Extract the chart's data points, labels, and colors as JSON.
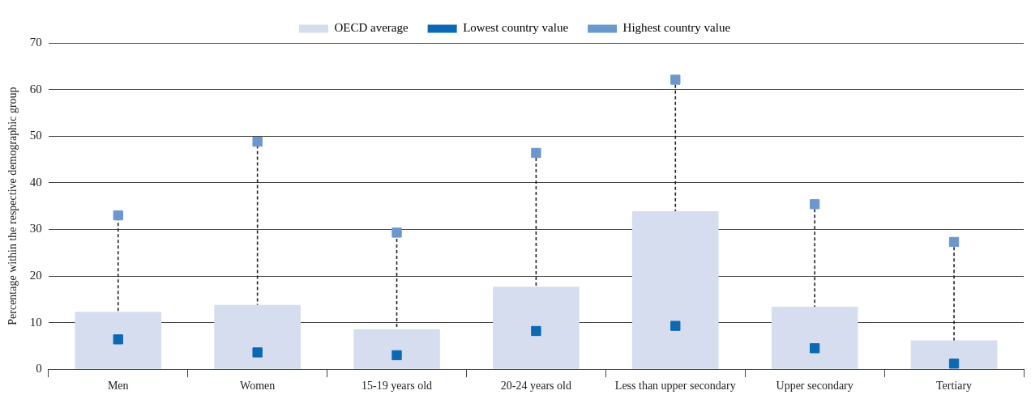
{
  "chart_data": {
    "type": "bar",
    "ylabel": "Percentage within the respective demographic group",
    "categories": [
      "Men",
      "Women",
      "15-19 years old",
      "20-24 years old",
      "Less than upper secondary",
      "Upper secondary",
      "Tertiary"
    ],
    "series": [
      {
        "name": "OECD average",
        "color": "#d5ddef",
        "values": [
          12.3,
          13.8,
          8.6,
          17.7,
          33.9,
          13.4,
          6.2
        ]
      },
      {
        "name": "Lowest country value",
        "type": "scatter",
        "color": "#0a68b4",
        "x": [
          "Men",
          "Women",
          "15-19 years old",
          "20-24 years old",
          "Less than upper secondary",
          "Upper secondary",
          "Tertiary"
        ],
        "values": [
          6.4,
          3.6,
          3.0,
          8.2,
          9.3,
          4.5,
          1.2
        ]
      },
      {
        "name": "Highest country value",
        "type": "scatter",
        "color": "#6b97cf",
        "x": [
          "Men",
          "Women",
          "15-19 years old",
          "20-24 years old",
          "Less than upper secondary",
          "Upper secondary",
          "Tertiary"
        ],
        "values": [
          33.0,
          48.8,
          29.3,
          46.4,
          62.1,
          35.4,
          27.3
        ]
      }
    ],
    "ylim": [
      0,
      70
    ],
    "yticks": [
      0,
      10,
      20,
      30,
      40,
      50,
      60,
      70
    ],
    "grid": "y",
    "legend": "top",
    "marker": "square"
  }
}
